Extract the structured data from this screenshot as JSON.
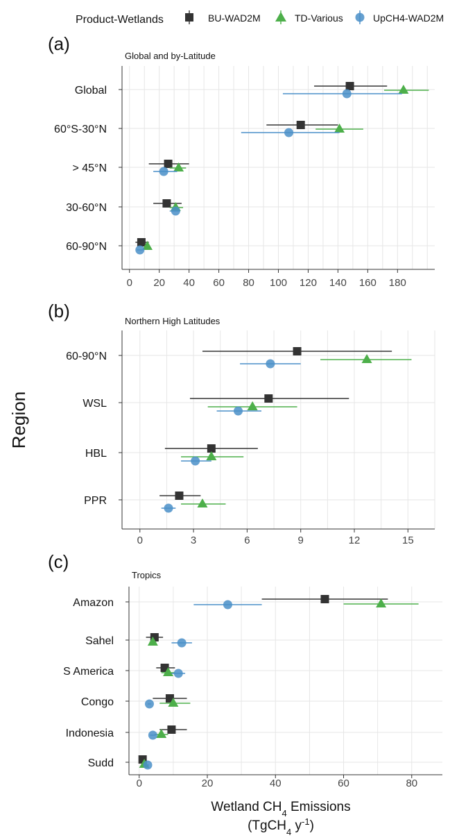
{
  "legend": {
    "title": "Product-Wetlands",
    "entries": [
      {
        "name": "BU-WAD2M",
        "color": "#333333",
        "shape": "square"
      },
      {
        "name": "TD-Various",
        "color": "#4daf4a",
        "shape": "triangle"
      },
      {
        "name": "UpCH4-WAD2M",
        "color": "#4a8fc8",
        "shape": "circle"
      }
    ]
  },
  "axis": {
    "ylabel": "Region",
    "xlabel_line1_pre": "Wetland CH",
    "xlabel_line1_sub": "4",
    "xlabel_line1_post": " Emissions",
    "xlabel_line2_pre": "(TgCH",
    "xlabel_line2_sub": "4",
    "xlabel_line2_mid": " y",
    "xlabel_line2_sup": "-1",
    "xlabel_line2_post": ")"
  },
  "chart_data": [
    {
      "type": "scatter",
      "tag": "(a)",
      "title": "Global and by-Latitude",
      "categories": [
        "Global",
        "60°S-30°N",
        "> 45°N",
        "30-60°N",
        "60-90°N"
      ],
      "xticks": [
        0,
        20,
        40,
        60,
        80,
        100,
        120,
        140,
        160,
        180
      ],
      "xlim": [
        -5,
        205
      ],
      "series": [
        {
          "name": "BU-WAD2M",
          "values": [
            148,
            115,
            26,
            25,
            8
          ],
          "low": [
            124,
            92,
            13,
            16,
            4
          ],
          "high": [
            173,
            140,
            40,
            35,
            13
          ]
        },
        {
          "name": "TD-Various",
          "values": [
            184,
            141,
            33,
            31,
            12
          ],
          "low": [
            171,
            125,
            27,
            27,
            10
          ],
          "high": [
            201,
            157,
            38,
            36,
            14
          ]
        },
        {
          "name": "UpCH4-WAD2M",
          "values": [
            146,
            107,
            23,
            31,
            7
          ],
          "low": [
            103,
            75,
            16,
            27,
            5
          ],
          "high": [
            183,
            141,
            32,
            34,
            9
          ]
        }
      ]
    },
    {
      "type": "scatter",
      "tag": "(b)",
      "title": "Northern High Latitudes",
      "categories": [
        "60-90°N",
        "WSL",
        "HBL",
        "PPR"
      ],
      "xticks": [
        0,
        3,
        6,
        9,
        12,
        15
      ],
      "xlim": [
        -1,
        16.5
      ],
      "series": [
        {
          "name": "BU-WAD2M",
          "values": [
            8.8,
            7.2,
            4.0,
            2.2
          ],
          "low": [
            3.5,
            2.8,
            1.4,
            1.1
          ],
          "high": [
            14.1,
            11.7,
            6.6,
            3.4
          ]
        },
        {
          "name": "TD-Various",
          "values": [
            12.7,
            6.3,
            4.0,
            3.5
          ],
          "low": [
            10.1,
            3.8,
            2.3,
            2.3
          ],
          "high": [
            15.2,
            8.8,
            5.8,
            4.8
          ]
        },
        {
          "name": "UpCH4-WAD2M",
          "values": [
            7.3,
            5.5,
            3.1,
            1.6
          ],
          "low": [
            5.6,
            4.3,
            2.3,
            1.2
          ],
          "high": [
            9.0,
            6.8,
            4.0,
            2.0
          ]
        }
      ]
    },
    {
      "type": "scatter",
      "tag": "(c)",
      "title": "Tropics",
      "categories": [
        "Amazon",
        "Sahel",
        "S America",
        "Congo",
        "Indonesia",
        "Sudd"
      ],
      "xticks": [
        0,
        20,
        40,
        60,
        80
      ],
      "xlim": [
        -3,
        89
      ],
      "series": [
        {
          "name": "BU-WAD2M",
          "values": [
            54.5,
            4.5,
            7.5,
            9.0,
            9.5,
            1.0
          ],
          "low": [
            36,
            2,
            5,
            4,
            6,
            0.2
          ],
          "high": [
            73,
            7,
            10.5,
            14,
            14,
            2
          ]
        },
        {
          "name": "TD-Various",
          "values": [
            71,
            4.0,
            8.5,
            10.0,
            6.5,
            1.5
          ],
          "low": [
            60,
            3,
            6.5,
            6,
            4.5,
            0.8
          ],
          "high": [
            82,
            5,
            10.5,
            15,
            8.5,
            2.2
          ]
        },
        {
          "name": "UpCH4-WAD2M",
          "values": [
            26,
            12.5,
            11.5,
            3.0,
            4.0,
            2.5
          ],
          "low": [
            16,
            9.5,
            9.5,
            2.5,
            3.2,
            2.1
          ],
          "high": [
            36,
            15.5,
            13.5,
            3.5,
            4.8,
            2.9
          ]
        }
      ]
    }
  ]
}
